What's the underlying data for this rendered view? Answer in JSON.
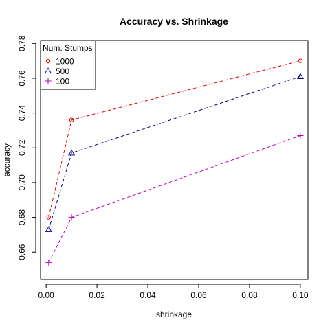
{
  "chart_data": {
    "type": "line",
    "title": "Accuracy vs. Shrinkage",
    "xlabel": "shrinkage",
    "ylabel": "accuracy",
    "xlim": [
      -0.0022,
      0.103
    ],
    "ylim": [
      0.6443,
      0.7817
    ],
    "x_ticks": [
      0.0,
      0.02,
      0.04,
      0.06,
      0.08,
      0.1
    ],
    "x_tick_labels": [
      "0.00",
      "0.02",
      "0.04",
      "0.06",
      "0.08",
      "0.10"
    ],
    "y_ticks": [
      0.66,
      0.68,
      0.7,
      0.72,
      0.74,
      0.76,
      0.78
    ],
    "y_tick_labels": [
      "0.66",
      "0.68",
      "0.70",
      "0.72",
      "0.74",
      "0.76",
      "0.78"
    ],
    "legend": {
      "title": "Num. Stumps",
      "position": "top-left"
    },
    "series": [
      {
        "name": "1000",
        "color": "#dd0000",
        "marker": "circle",
        "x": [
          0.001,
          0.01,
          0.1
        ],
        "y": [
          0.68,
          0.736,
          0.77
        ]
      },
      {
        "name": "500",
        "color": "#000080",
        "marker": "triangle",
        "x": [
          0.001,
          0.01,
          0.1
        ],
        "y": [
          0.673,
          0.717,
          0.761
        ]
      },
      {
        "name": "100",
        "color": "#bb00bb",
        "marker": "plus",
        "x": [
          0.001,
          0.01,
          0.1
        ],
        "y": [
          0.654,
          0.68,
          0.727
        ]
      }
    ]
  }
}
